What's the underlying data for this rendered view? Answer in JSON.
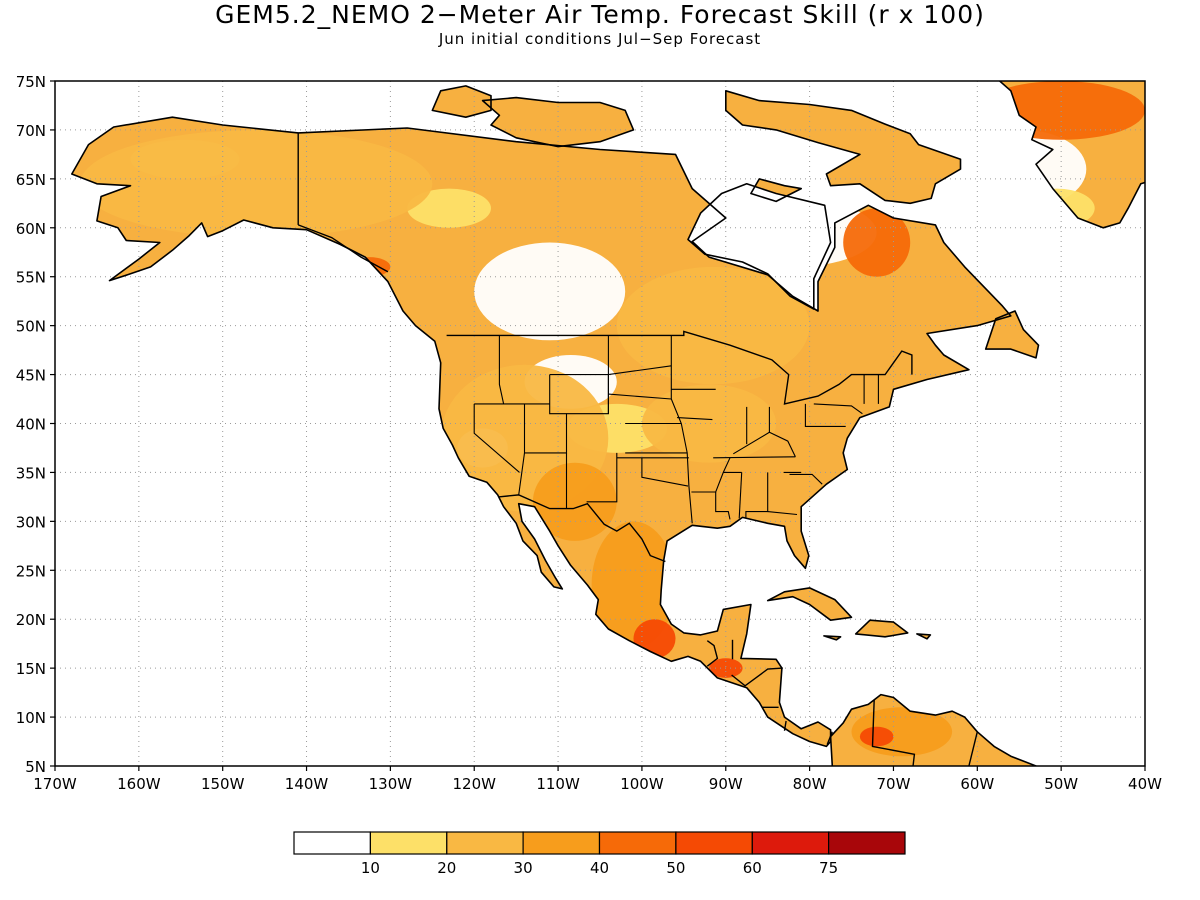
{
  "title": "GEM5.2_NEMO 2−Meter Air Temp. Forecast Skill (r x 100)",
  "subtitle": "Jun initial conditions   Jul−Sep Forecast",
  "map": {
    "projection": "cylindrical-equidistant",
    "lon_range": [
      -170,
      -40
    ],
    "lat_range": [
      5,
      75
    ],
    "lon_ticks": [
      {
        "value": -170,
        "label": "170W"
      },
      {
        "value": -160,
        "label": "160W"
      },
      {
        "value": -150,
        "label": "150W"
      },
      {
        "value": -140,
        "label": "140W"
      },
      {
        "value": -130,
        "label": "130W"
      },
      {
        "value": -120,
        "label": "120W"
      },
      {
        "value": -110,
        "label": "110W"
      },
      {
        "value": -100,
        "label": "100W"
      },
      {
        "value": -90,
        "label": "90W"
      },
      {
        "value": -80,
        "label": "80W"
      },
      {
        "value": -70,
        "label": "70W"
      },
      {
        "value": -60,
        "label": "60W"
      },
      {
        "value": -50,
        "label": "50W"
      },
      {
        "value": -40,
        "label": "40W"
      }
    ],
    "lat_ticks": [
      {
        "value": 75,
        "label": "75N"
      },
      {
        "value": 70,
        "label": "70N"
      },
      {
        "value": 65,
        "label": "65N"
      },
      {
        "value": 60,
        "label": "60N"
      },
      {
        "value": 55,
        "label": "55N"
      },
      {
        "value": 50,
        "label": "50N"
      },
      {
        "value": 45,
        "label": "45N"
      },
      {
        "value": 40,
        "label": "40N"
      },
      {
        "value": 35,
        "label": "35N"
      },
      {
        "value": 30,
        "label": "30N"
      },
      {
        "value": 25,
        "label": "25N"
      },
      {
        "value": 20,
        "label": "20N"
      },
      {
        "value": 15,
        "label": "15N"
      },
      {
        "value": 10,
        "label": "10N"
      },
      {
        "value": 5,
        "label": "5N"
      }
    ],
    "grid": true,
    "land_color": "#f7b040",
    "outline_color": "#000000"
  },
  "colorbar": {
    "colors": [
      "#ffffff",
      "#fde068",
      "#f9b843",
      "#f79d1c",
      "#f66a08",
      "#f54a04",
      "#dd1a0c",
      "#a8060a"
    ],
    "labels": [
      "10",
      "20",
      "30",
      "40",
      "50",
      "60",
      "75"
    ]
  },
  "skill_regions": [
    {
      "level": 0,
      "lon": [
        -120,
        -102
      ],
      "lat": [
        48.5,
        58.5
      ]
    },
    {
      "level": 0,
      "lon": [
        -114,
        -103
      ],
      "lat": [
        41.5,
        47
      ]
    },
    {
      "level": 0,
      "lon": [
        -92,
        -72
      ],
      "lat": [
        56,
        63
      ]
    },
    {
      "level": 0,
      "lon": [
        -62,
        -47
      ],
      "lat": [
        62,
        70
      ]
    },
    {
      "level": 0,
      "lon": [
        -122,
        -116
      ],
      "lat": [
        35.5,
        39.5
      ]
    },
    {
      "level": 1,
      "lon": [
        -109,
        -97
      ],
      "lat": [
        37,
        42
      ]
    },
    {
      "level": 1,
      "lon": [
        -128,
        -118
      ],
      "lat": [
        60,
        64
      ]
    },
    {
      "level": 1,
      "lon": [
        -161,
        -148
      ],
      "lat": [
        65,
        69
      ]
    },
    {
      "level": 1,
      "lon": [
        -55,
        -46
      ],
      "lat": [
        60,
        64
      ]
    },
    {
      "level": 2,
      "lon": [
        -167,
        -125
      ],
      "lat": [
        59,
        70
      ]
    },
    {
      "level": 2,
      "lon": [
        -103,
        -80
      ],
      "lat": [
        44,
        56
      ]
    },
    {
      "level": 2,
      "lon": [
        -100,
        -84
      ],
      "lat": [
        36,
        44
      ]
    },
    {
      "level": 2,
      "lon": [
        -124,
        -104
      ],
      "lat": [
        31,
        46
      ]
    },
    {
      "level": 3,
      "lon": [
        -113,
        -103
      ],
      "lat": [
        28,
        36
      ]
    },
    {
      "level": 3,
      "lon": [
        -106,
        -96
      ],
      "lat": [
        17,
        30
      ]
    },
    {
      "level": 3,
      "lon": [
        -75,
        -63
      ],
      "lat": [
        6,
        11
      ]
    },
    {
      "level": 4,
      "lon": [
        -76,
        -68
      ],
      "lat": [
        55,
        62
      ]
    },
    {
      "level": 4,
      "lon": [
        -60,
        -40
      ],
      "lat": [
        69,
        75
      ]
    },
    {
      "level": 4,
      "lon": [
        -135,
        -130
      ],
      "lat": [
        55,
        57
      ]
    },
    {
      "level": 5,
      "lon": [
        -101,
        -96
      ],
      "lat": [
        16,
        20
      ]
    },
    {
      "level": 5,
      "lon": [
        -92,
        -88
      ],
      "lat": [
        14,
        16
      ]
    },
    {
      "level": 5,
      "lon": [
        -74,
        -70
      ],
      "lat": [
        7,
        9
      ]
    }
  ]
}
